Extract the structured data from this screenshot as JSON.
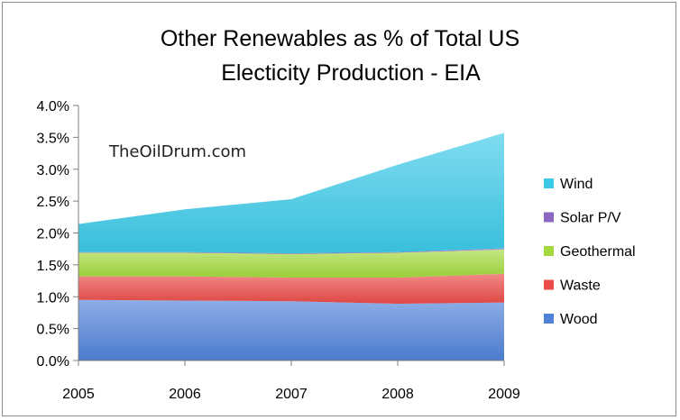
{
  "chart_data": {
    "type": "area",
    "stacked": true,
    "title": [
      "Other Renewables as % of Total US",
      "Electicity Production - EIA"
    ],
    "watermark": "TheOilDrum.com",
    "x": [
      "2005",
      "2006",
      "2007",
      "2008",
      "2009"
    ],
    "ylim": [
      0,
      0.04
    ],
    "y_ticks": [
      "0.0%",
      "0.5%",
      "1.0%",
      "1.5%",
      "2.0%",
      "2.5%",
      "3.0%",
      "3.5%",
      "4.0%"
    ],
    "legend_position": "right",
    "series": [
      {
        "name": "Wood",
        "color": "#4f81d9",
        "values": [
          0.0095,
          0.0094,
          0.0093,
          0.0089,
          0.0091
        ]
      },
      {
        "name": "Waste",
        "color": "#ea4b47",
        "values": [
          0.0037,
          0.0038,
          0.0037,
          0.0041,
          0.0045
        ]
      },
      {
        "name": "Geothermal",
        "color": "#a3d93d",
        "values": [
          0.0037,
          0.0037,
          0.0037,
          0.0039,
          0.0038
        ]
      },
      {
        "name": "Solar P/V",
        "color": "#8b67c2",
        "values": [
          0.0001,
          0.0001,
          0.0001,
          0.0001,
          0.0002
        ]
      },
      {
        "name": "Wind",
        "color": "#3cc9e8",
        "values": [
          0.0044,
          0.0067,
          0.0085,
          0.0137,
          0.0181
        ]
      }
    ]
  }
}
